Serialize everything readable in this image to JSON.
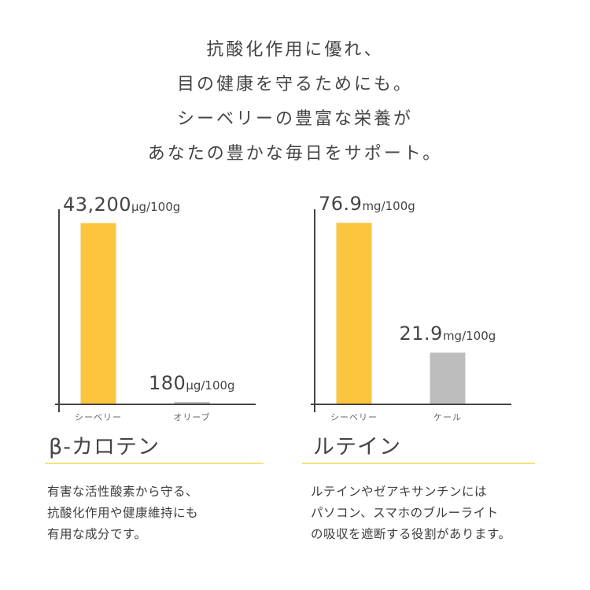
{
  "headline": {
    "lines": [
      "抗酸化作用に優れ、",
      "目の健康を守るためにも。",
      "シーベリーの豊富な栄養が",
      "あなたの豊かな毎日をサポート。"
    ]
  },
  "colors": {
    "highlight_bar": "#fbc53e",
    "compare_bar": "#bdbdbd",
    "axis": "#444444",
    "underline": "#f6e27f"
  },
  "chart_data": [
    {
      "type": "bar",
      "title": "β-カロテン",
      "categories": [
        "シーベリー",
        "オリーブ"
      ],
      "values": [
        43200,
        180
      ],
      "unit": "μg/100g",
      "value_labels": [
        {
          "num": "43,200",
          "unit": "μg/100g"
        },
        {
          "num": "180",
          "unit": "μg/100g"
        }
      ],
      "xlabel": "",
      "ylabel": "",
      "ylim": [
        0,
        45000
      ],
      "grid": false,
      "description": [
        "有害な活性酸素から守る、",
        "抗酸化作用や健康維持にも",
        "有用な成分です。"
      ]
    },
    {
      "type": "bar",
      "title": "ルテイン",
      "categories": [
        "シーベリー",
        "ケール"
      ],
      "values": [
        76.9,
        21.9
      ],
      "unit": "mg/100g",
      "value_labels": [
        {
          "num": "76.9",
          "unit": "mg/100g"
        },
        {
          "num": "21.9",
          "unit": "mg/100g"
        }
      ],
      "xlabel": "",
      "ylabel": "",
      "ylim": [
        0,
        80
      ],
      "grid": false,
      "description": [
        "ルテインやゼアキサンチンには",
        "パソコン、スマホのブルーライト",
        "の吸収を遮断する役割があります。"
      ]
    }
  ]
}
